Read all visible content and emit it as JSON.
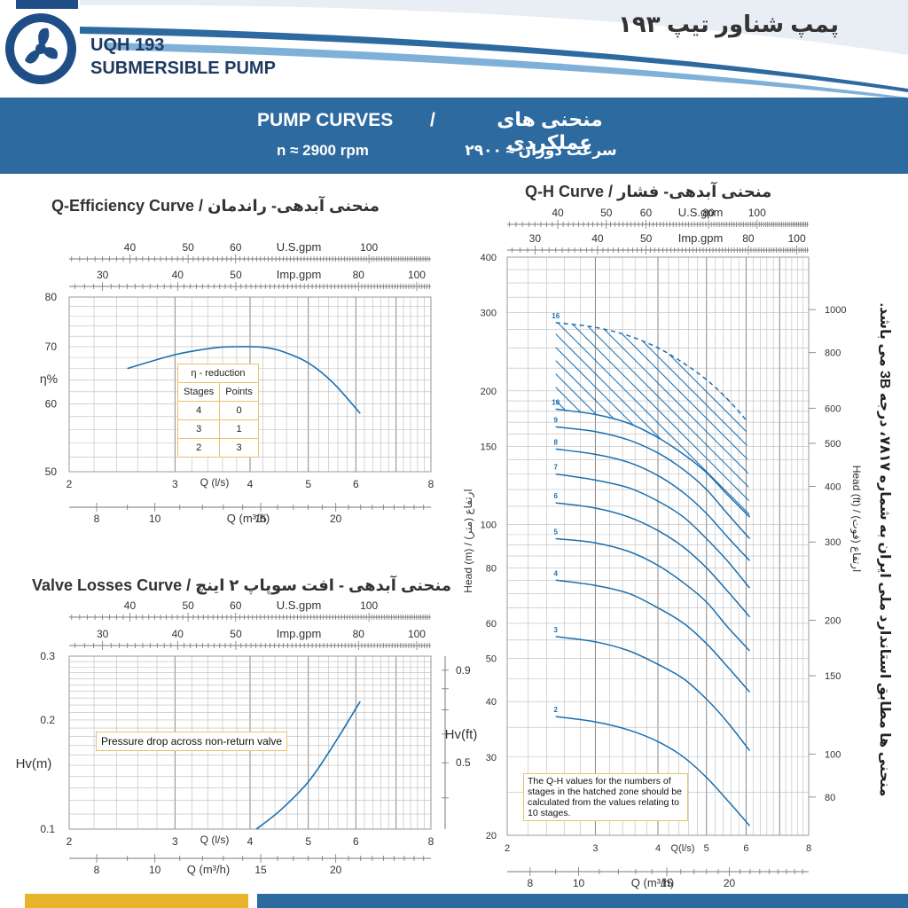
{
  "header": {
    "model": "UQH 193",
    "product": "SUBMERSIBLE PUMP",
    "title_fa": "پمپ شناور تیپ ۱۹۳"
  },
  "banner": {
    "title_en": "PUMP CURVES",
    "separator": "/",
    "title_fa": "منحنی های عملکردی",
    "speed_en": "n ≈ 2900 rpm",
    "speed_fa": "سرعت دوران ≈ ۲۹۰۰"
  },
  "side_note": "منحنی ها مطابق استاندارد ملی ایران به شماره ۷۸۱۷، درجه 3B می باشد.",
  "efficiency": {
    "title": "Q-Efficiency Curve /  منحنی آبدهی- راندمان",
    "usgpm_label": "U.S.gpm",
    "usgpm_ticks": [
      "40",
      "50",
      "60",
      "100"
    ],
    "impgpm_label": "Imp.gpm",
    "impgpm_ticks": [
      "30",
      "40",
      "50",
      "80",
      "100"
    ],
    "y_label": "η%",
    "y_ticks": [
      "80",
      "70",
      "60",
      "50"
    ],
    "ls_label": "Q (l/s)",
    "ls_ticks": [
      "2",
      "3",
      "4",
      "5",
      "6",
      "8"
    ],
    "m3h_label": "Q (m³/h)",
    "m3h_ticks": [
      "8",
      "10",
      "15",
      "20"
    ],
    "table": {
      "title": "η - reduction",
      "headers": [
        "Stages",
        "Points"
      ],
      "rows": [
        [
          "4",
          "0"
        ],
        [
          "3",
          "1"
        ],
        [
          "2",
          "3"
        ]
      ]
    }
  },
  "valve": {
    "title": "Valve Losses Curve /  منحنی آبدهی - افت سوپاپ ۲ اینچ",
    "usgpm_label": "U.S.gpm",
    "usgpm_ticks": [
      "40",
      "50",
      "60",
      "100"
    ],
    "impgpm_label": "Imp.gpm",
    "impgpm_ticks": [
      "30",
      "40",
      "50",
      "80",
      "100"
    ],
    "y_label": "Hv(m)",
    "y_ticks": [
      "0.3",
      "0.2",
      "0.1"
    ],
    "y2_label": "Hv(ft)",
    "y2_ticks": [
      "0.9",
      "0.5"
    ],
    "note": "Pressure drop across non-return valve",
    "ls_label": "Q (l/s)",
    "ls_ticks": [
      "2",
      "3",
      "4",
      "5",
      "6",
      "8"
    ],
    "m3h_label": "Q (m³/h)",
    "m3h_ticks": [
      "8",
      "10",
      "15",
      "20"
    ]
  },
  "qh": {
    "title": "Q-H Curve /  منحنی آبدهی- فشار",
    "usgpm_label": "U.S.gpm",
    "usgpm_ticks": [
      "40",
      "50",
      "60",
      "80",
      "100"
    ],
    "impgpm_label": "Imp.gpm",
    "impgpm_ticks": [
      "30",
      "40",
      "50",
      "80",
      "100"
    ],
    "y_label": "Head (m) / (ارتفاع (متر",
    "y_ticks": [
      "400",
      "300",
      "200",
      "150",
      "100",
      "80",
      "60",
      "50",
      "40",
      "30",
      "20"
    ],
    "y2_label": "Head (ft) / (ارتفاع (فوت",
    "y2_ticks": [
      "1000",
      "800",
      "600",
      "500",
      "400",
      "300",
      "200",
      "150",
      "100",
      "80"
    ],
    "ls_label": "Q(l/s)",
    "ls_ticks": [
      "2",
      "3",
      "4",
      "5",
      "6",
      "8"
    ],
    "m3h_label": "Q (m³/h)",
    "m3h_ticks": [
      "8",
      "10",
      "15",
      "20"
    ],
    "note": "The Q-H values for the numbers of stages in the hatched zone should be calculated from the values relating to 10 stages."
  },
  "colors": {
    "curve": "#1a6fb0",
    "banner": "#2d6aa0",
    "grid": "#bbbbbb",
    "grid_major": "#888888",
    "note_border": "#e9c26d",
    "footer_yellow": "#e8b52a",
    "footer_blue": "#2d6aa0"
  },
  "chart_data": [
    {
      "type": "line",
      "title": "Q-Efficiency Curve",
      "xlabel": "Q (l/s)",
      "ylabel": "η%",
      "xscale": "log",
      "yscale": "log",
      "xlim": [
        2,
        8
      ],
      "ylim": [
        50,
        80
      ],
      "grid": true,
      "series": [
        {
          "x": [
            2.5,
            3.0,
            3.5,
            3.8,
            4.0,
            4.2,
            4.5,
            5.0,
            5.5,
            6.1
          ],
          "y": [
            66.0,
            68.5,
            69.8,
            70.0,
            70.0,
            69.9,
            69.2,
            67.0,
            63.5,
            58.5
          ]
        }
      ]
    },
    {
      "type": "line",
      "title": "Valve Losses Curve",
      "xlabel": "Q (l/s)",
      "ylabel": "Hv(m)",
      "xscale": "log",
      "yscale": "log",
      "xlim": [
        2,
        8
      ],
      "ylim": [
        0.1,
        0.3
      ],
      "grid": true,
      "series": [
        {
          "x": [
            4.1,
            4.5,
            5.0,
            5.5,
            6.0,
            6.1
          ],
          "y": [
            0.1,
            0.113,
            0.135,
            0.17,
            0.215,
            0.225
          ]
        }
      ]
    },
    {
      "type": "line",
      "title": "Q-H Curve",
      "xlabel": "Q(l/s)",
      "ylabel": "Head (m)",
      "xscale": "log",
      "yscale": "log",
      "xlim": [
        2,
        8
      ],
      "ylim": [
        20,
        400
      ],
      "grid": true,
      "series": [
        {
          "name": "16",
          "dashed": true,
          "x": [
            2.5,
            3.0,
            3.5,
            4.0,
            4.5,
            5.0,
            5.5,
            6.0
          ],
          "y": [
            285,
            278,
            266,
            250,
            231,
            212,
            192,
            172
          ]
        },
        {
          "name": "10",
          "x": [
            2.5,
            3.0,
            3.5,
            4.0,
            4.5,
            5.0,
            5.5,
            6.1
          ],
          "y": [
            182,
            177,
            169,
            157,
            144,
            131,
            117,
            104
          ]
        },
        {
          "name": "9",
          "x": [
            2.5,
            3.0,
            3.5,
            4.0,
            4.5,
            5.0,
            5.5,
            6.1
          ],
          "y": [
            166,
            162,
            155,
            145,
            133,
            120,
            106,
            93
          ]
        },
        {
          "name": "8",
          "x": [
            2.5,
            3.0,
            3.5,
            4.0,
            4.5,
            5.0,
            5.5,
            6.1
          ],
          "y": [
            148,
            144,
            138,
            129,
            118,
            106,
            94,
            83
          ]
        },
        {
          "name": "7",
          "x": [
            2.5,
            3.0,
            3.5,
            4.0,
            4.5,
            5.0,
            5.5,
            6.1
          ],
          "y": [
            130,
            126,
            121,
            113,
            104,
            93,
            83,
            72
          ]
        },
        {
          "name": "6",
          "x": [
            2.5,
            3.0,
            3.5,
            4.0,
            4.5,
            5.0,
            5.5,
            6.1
          ],
          "y": [
            112,
            109,
            104,
            97,
            89,
            80,
            71,
            62
          ]
        },
        {
          "name": "5",
          "x": [
            2.5,
            3.0,
            3.5,
            4.0,
            4.5,
            5.0,
            5.5,
            6.1
          ],
          "y": [
            93,
            91,
            87,
            81,
            74,
            67,
            59,
            52
          ]
        },
        {
          "name": "4",
          "x": [
            2.5,
            3.0,
            3.5,
            4.0,
            4.5,
            5.0,
            5.5,
            6.1
          ],
          "y": [
            75,
            73,
            70,
            65,
            60,
            54,
            48,
            42
          ]
        },
        {
          "name": "3",
          "x": [
            2.5,
            3.0,
            3.5,
            4.0,
            4.5,
            5.0,
            5.5,
            6.1
          ],
          "y": [
            56,
            54.5,
            52,
            48.5,
            45,
            40.5,
            36,
            31
          ]
        },
        {
          "name": "2",
          "x": [
            2.5,
            3.0,
            3.5,
            4.0,
            4.5,
            5.0,
            5.5,
            6.1
          ],
          "y": [
            37,
            36,
            34.5,
            32.5,
            30,
            27,
            24,
            21
          ]
        }
      ]
    }
  ]
}
